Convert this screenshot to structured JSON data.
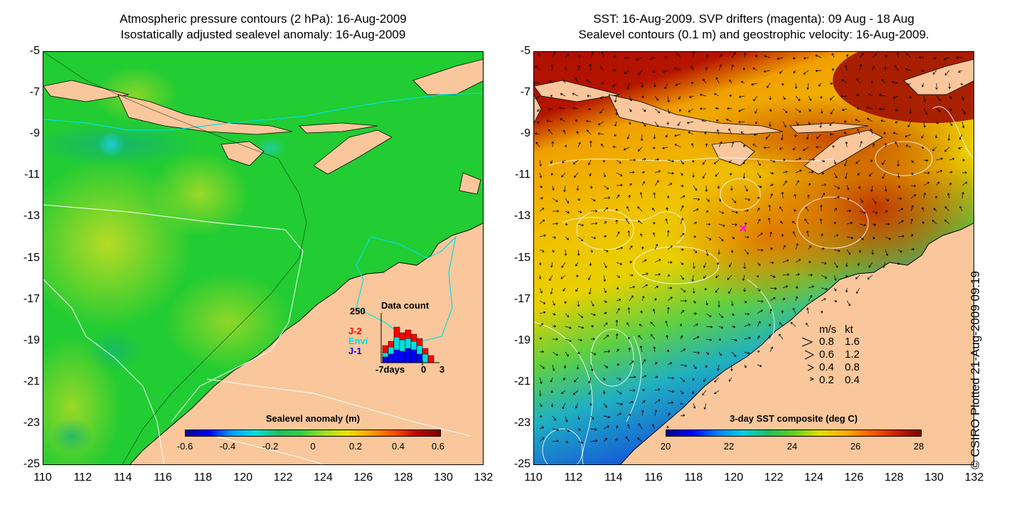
{
  "left_panel": {
    "title_line1": "Atmospheric pressure contours (2 hPa): 16-Aug-2009",
    "title_line2": "Isostatically adjusted sealevel anomaly: 16-Aug-2009",
    "colorbar_title": "Sealevel anomaly (m)",
    "colorbar_ticks": [
      "-0.6",
      "-0.4",
      "-0.2",
      "0",
      "0.2",
      "0.4",
      "0.6"
    ],
    "data_count": {
      "title": "Data count",
      "ymax_label": "250",
      "series": [
        {
          "name": "J-2",
          "color": "#ff0000"
        },
        {
          "name": "Envi",
          "color": "#00e0e0"
        },
        {
          "name": "J-1",
          "color": "#0000ff"
        }
      ],
      "x_start": "-7days",
      "x_zero": "0",
      "x_end": "3"
    }
  },
  "right_panel": {
    "title_line1": "SST: 16-Aug-2009. SVP drifters (magenta): 09 Aug - 18 Aug",
    "title_line2": "Sealevel contours (0.1 m) and geostrophic velocity: 16-Aug-2009.",
    "colorbar_title": "3-day SST composite (deg C)",
    "colorbar_ticks": [
      "20",
      "22",
      "24",
      "26",
      "28"
    ],
    "velocity_legend": {
      "header_ms": "m/s",
      "header_kt": "kt",
      "rows": [
        {
          "ms": "0.8",
          "kt": "1.6"
        },
        {
          "ms": "0.6",
          "kt": "1.2"
        },
        {
          "ms": "0.4",
          "kt": "0.8"
        },
        {
          "ms": "0.2",
          "kt": "0.4"
        }
      ]
    }
  },
  "axes": {
    "y_ticks": [
      "-5",
      "-7",
      "-9",
      "-11",
      "-13",
      "-15",
      "-17",
      "-19",
      "-21",
      "-23",
      "-25"
    ],
    "x_ticks": [
      "110",
      "112",
      "114",
      "116",
      "118",
      "120",
      "122",
      "124",
      "126",
      "128",
      "130",
      "132"
    ]
  },
  "copyright": "© CSIRO Plotted 21-Aug-2009 09:19",
  "colors": {
    "land": "#f9c79b",
    "ocean_anomaly": "#22cc33",
    "sst_warm": "#c83c00"
  }
}
